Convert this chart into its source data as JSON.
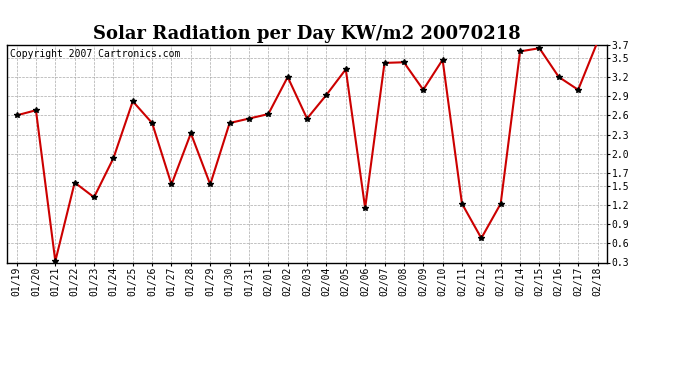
{
  "title": "Solar Radiation per Day KW/m2 20070218",
  "copyright_text": "Copyright 2007 Cartronics.com",
  "dates": [
    "01/19",
    "01/20",
    "01/21",
    "01/22",
    "01/23",
    "01/24",
    "01/25",
    "01/26",
    "01/27",
    "01/28",
    "01/29",
    "01/30",
    "01/31",
    "02/01",
    "02/02",
    "02/03",
    "02/04",
    "02/05",
    "02/06",
    "02/07",
    "02/08",
    "02/09",
    "02/10",
    "02/11",
    "02/12",
    "02/13",
    "02/14",
    "02/15",
    "02/16",
    "02/17",
    "02/18"
  ],
  "values": [
    2.6,
    2.68,
    0.32,
    1.55,
    1.32,
    1.93,
    2.82,
    2.48,
    1.52,
    2.32,
    1.52,
    2.48,
    2.55,
    2.62,
    3.2,
    2.55,
    2.92,
    3.32,
    1.15,
    3.42,
    3.43,
    3.0,
    3.47,
    1.22,
    0.68,
    1.22,
    3.6,
    3.65,
    3.2,
    3.0,
    3.75
  ],
  "line_color": "#cc0000",
  "marker": "*",
  "marker_color": "#000000",
  "marker_size": 4,
  "line_width": 1.5,
  "ylim": [
    0.3,
    3.7
  ],
  "yticks": [
    0.3,
    0.6,
    0.9,
    1.2,
    1.5,
    1.7,
    2.0,
    2.3,
    2.6,
    2.9,
    3.2,
    3.5,
    3.7
  ],
  "bg_color": "#ffffff",
  "plot_bg_color": "#ffffff",
  "grid_color": "#aaaaaa",
  "title_fontsize": 13,
  "copyright_fontsize": 7,
  "tick_fontsize": 7
}
